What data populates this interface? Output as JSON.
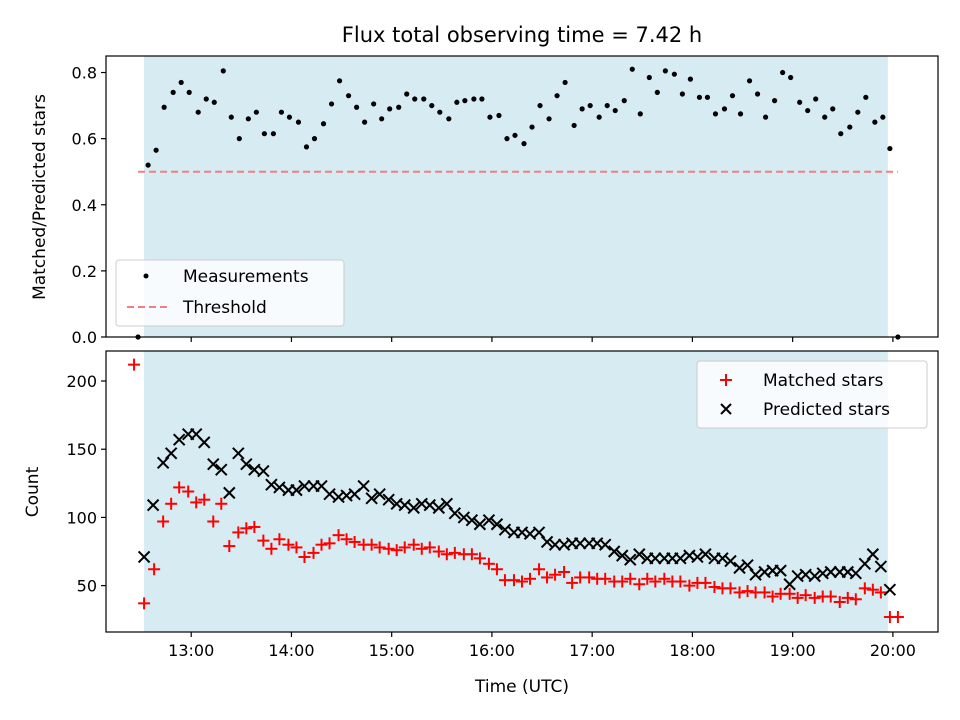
{
  "chart_data": [
    {
      "type": "scatter",
      "title": "Flux total observing time = 7.42 h",
      "xlabel": "",
      "ylabel": "Matched/Predicted stars",
      "ylim": [
        0,
        0.85
      ],
      "yticks": [
        0.0,
        0.2,
        0.4,
        0.6,
        0.8
      ],
      "ytick_labels": [
        "0.0",
        "0.2",
        "0.4",
        "0.6",
        "0.8"
      ],
      "x_unit": "hours (UTC)",
      "xlim": [
        12.15,
        20.45
      ],
      "shaded_span": {
        "start": 12.53,
        "end": 19.95,
        "color": "#add8e6"
      },
      "legend": {
        "position": "lower-left",
        "entries": [
          "Measurements",
          "Threshold"
        ]
      },
      "series": [
        {
          "name": "Measurements",
          "color": "#000000",
          "marker": "dot",
          "x": [
            12.47,
            12.57,
            12.65,
            12.73,
            12.82,
            12.9,
            12.98,
            13.07,
            13.15,
            13.23,
            13.32,
            13.4,
            13.48,
            13.57,
            13.65,
            13.73,
            13.82,
            13.9,
            13.98,
            14.07,
            14.15,
            14.23,
            14.32,
            14.4,
            14.48,
            14.57,
            14.65,
            14.73,
            14.82,
            14.9,
            14.98,
            15.07,
            15.15,
            15.23,
            15.32,
            15.4,
            15.48,
            15.57,
            15.65,
            15.73,
            15.82,
            15.9,
            15.98,
            16.07,
            16.15,
            16.23,
            16.32,
            16.4,
            16.48,
            16.57,
            16.65,
            16.73,
            16.82,
            16.9,
            16.98,
            17.07,
            17.15,
            17.23,
            17.32,
            17.4,
            17.48,
            17.57,
            17.65,
            17.73,
            17.82,
            17.9,
            17.98,
            18.07,
            18.15,
            18.23,
            18.32,
            18.4,
            18.48,
            18.57,
            18.65,
            18.73,
            18.82,
            18.9,
            18.98,
            19.07,
            19.15,
            19.23,
            19.32,
            19.4,
            19.48,
            19.57,
            19.65,
            19.73,
            19.82,
            19.9,
            19.97,
            20.05
          ],
          "y": [
            0.0,
            0.52,
            0.565,
            0.695,
            0.74,
            0.77,
            0.74,
            0.68,
            0.72,
            0.71,
            0.805,
            0.665,
            0.6,
            0.66,
            0.68,
            0.615,
            0.615,
            0.68,
            0.665,
            0.65,
            0.575,
            0.6,
            0.645,
            0.705,
            0.775,
            0.73,
            0.695,
            0.65,
            0.705,
            0.66,
            0.69,
            0.695,
            0.735,
            0.72,
            0.72,
            0.7,
            0.68,
            0.66,
            0.71,
            0.715,
            0.72,
            0.72,
            0.665,
            0.67,
            0.6,
            0.61,
            0.585,
            0.635,
            0.7,
            0.66,
            0.73,
            0.77,
            0.64,
            0.69,
            0.7,
            0.665,
            0.7,
            0.685,
            0.715,
            0.81,
            0.675,
            0.785,
            0.74,
            0.805,
            0.795,
            0.735,
            0.78,
            0.725,
            0.725,
            0.675,
            0.69,
            0.73,
            0.675,
            0.775,
            0.735,
            0.665,
            0.715,
            0.8,
            0.785,
            0.71,
            0.685,
            0.72,
            0.665,
            0.69,
            0.615,
            0.635,
            0.68,
            0.725,
            0.65,
            0.665,
            0.57,
            0.0
          ]
        },
        {
          "name": "Threshold",
          "color": "#f08080",
          "style": "dashed",
          "x": [
            12.47,
            20.05
          ],
          "y": [
            0.5,
            0.5
          ]
        }
      ]
    },
    {
      "type": "scatter",
      "title": "",
      "xlabel": "Time (UTC)",
      "ylabel": "Count",
      "ylim": [
        16,
        222
      ],
      "yticks": [
        50,
        100,
        150,
        200
      ],
      "ytick_labels": [
        "50",
        "100",
        "150",
        "200"
      ],
      "x_unit": "hours (UTC)",
      "xlim": [
        12.15,
        20.45
      ],
      "xticks": [
        13,
        14,
        15,
        16,
        17,
        18,
        19,
        20
      ],
      "xtick_labels": [
        "13:00",
        "14:00",
        "15:00",
        "16:00",
        "17:00",
        "18:00",
        "19:00",
        "20:00"
      ],
      "shaded_span": {
        "start": 12.53,
        "end": 19.95,
        "color": "#add8e6"
      },
      "legend": {
        "position": "top-right",
        "entries": [
          "Matched stars",
          "Predicted stars"
        ]
      },
      "series": [
        {
          "name": "Matched stars",
          "color": "#ff0000",
          "marker": "plus",
          "x": [
            12.43,
            12.53,
            12.63,
            12.72,
            12.8,
            12.88,
            12.97,
            13.05,
            13.13,
            13.22,
            13.3,
            13.38,
            13.47,
            13.55,
            13.63,
            13.72,
            13.8,
            13.88,
            13.97,
            14.05,
            14.13,
            14.22,
            14.3,
            14.38,
            14.47,
            14.55,
            14.63,
            14.72,
            14.8,
            14.88,
            14.97,
            15.05,
            15.13,
            15.22,
            15.3,
            15.38,
            15.47,
            15.55,
            15.63,
            15.72,
            15.8,
            15.88,
            15.97,
            16.05,
            16.13,
            16.22,
            16.3,
            16.38,
            16.47,
            16.55,
            16.63,
            16.72,
            16.8,
            16.88,
            16.97,
            17.05,
            17.13,
            17.22,
            17.3,
            17.38,
            17.47,
            17.55,
            17.63,
            17.72,
            17.8,
            17.88,
            17.97,
            18.05,
            18.13,
            18.22,
            18.3,
            18.38,
            18.47,
            18.55,
            18.63,
            18.72,
            18.8,
            18.88,
            18.97,
            19.05,
            19.13,
            19.22,
            19.3,
            19.38,
            19.47,
            19.55,
            19.63,
            19.72,
            19.8,
            19.88,
            19.97,
            20.05
          ],
          "y": [
            212,
            37,
            62,
            97,
            110,
            122,
            119,
            111,
            113,
            97,
            110,
            79,
            89,
            92,
            93,
            83,
            77,
            84,
            80,
            78,
            71,
            74,
            80,
            81,
            87,
            84,
            82,
            80,
            80,
            78,
            77,
            76,
            78,
            80,
            77,
            78,
            75,
            73,
            74,
            73,
            73,
            70,
            66,
            62,
            54,
            54,
            53,
            55,
            62,
            56,
            58,
            60,
            52,
            56,
            56,
            55,
            55,
            53,
            53,
            55,
            51,
            55,
            53,
            55,
            53,
            53,
            50,
            52,
            52,
            49,
            48,
            48,
            45,
            46,
            45,
            45,
            42,
            44,
            44,
            41,
            43,
            41,
            42,
            42,
            38,
            41,
            40,
            48,
            47,
            45,
            27,
            27
          ]
        },
        {
          "name": "Predicted stars",
          "color": "#000000",
          "marker": "x",
          "x": [
            12.53,
            12.62,
            12.72,
            12.8,
            12.88,
            12.97,
            13.05,
            13.13,
            13.22,
            13.3,
            13.38,
            13.47,
            13.55,
            13.63,
            13.72,
            13.8,
            13.88,
            13.97,
            14.05,
            14.13,
            14.22,
            14.3,
            14.38,
            14.47,
            14.55,
            14.63,
            14.72,
            14.8,
            14.88,
            14.97,
            15.05,
            15.13,
            15.22,
            15.3,
            15.38,
            15.47,
            15.55,
            15.63,
            15.72,
            15.8,
            15.88,
            15.97,
            16.05,
            16.13,
            16.22,
            16.3,
            16.38,
            16.47,
            16.55,
            16.63,
            16.72,
            16.8,
            16.88,
            16.97,
            17.05,
            17.13,
            17.22,
            17.3,
            17.38,
            17.47,
            17.55,
            17.63,
            17.72,
            17.8,
            17.88,
            17.97,
            18.05,
            18.13,
            18.22,
            18.3,
            18.38,
            18.47,
            18.55,
            18.63,
            18.72,
            18.8,
            18.88,
            18.97,
            19.05,
            19.13,
            19.22,
            19.3,
            19.38,
            19.47,
            19.55,
            19.63,
            19.72,
            19.8,
            19.88,
            19.97
          ],
          "y": [
            71,
            109,
            140,
            147,
            157,
            161,
            161,
            155,
            139,
            135,
            118,
            147,
            139,
            135,
            134,
            124,
            122,
            120,
            120,
            123,
            123,
            123,
            117,
            115,
            116,
            117,
            123,
            114,
            117,
            113,
            110,
            109,
            107,
            110,
            109,
            107,
            110,
            103,
            100,
            98,
            95,
            98,
            95,
            91,
            89,
            89,
            88,
            89,
            82,
            80,
            80,
            81,
            81,
            81,
            81,
            80,
            75,
            72,
            69,
            73,
            70,
            70,
            70,
            70,
            70,
            72,
            71,
            73,
            70,
            70,
            68,
            63,
            65,
            58,
            60,
            61,
            61,
            51,
            57,
            58,
            57,
            59,
            60,
            60,
            60,
            59,
            66,
            73,
            64,
            47
          ]
        }
      ]
    }
  ]
}
